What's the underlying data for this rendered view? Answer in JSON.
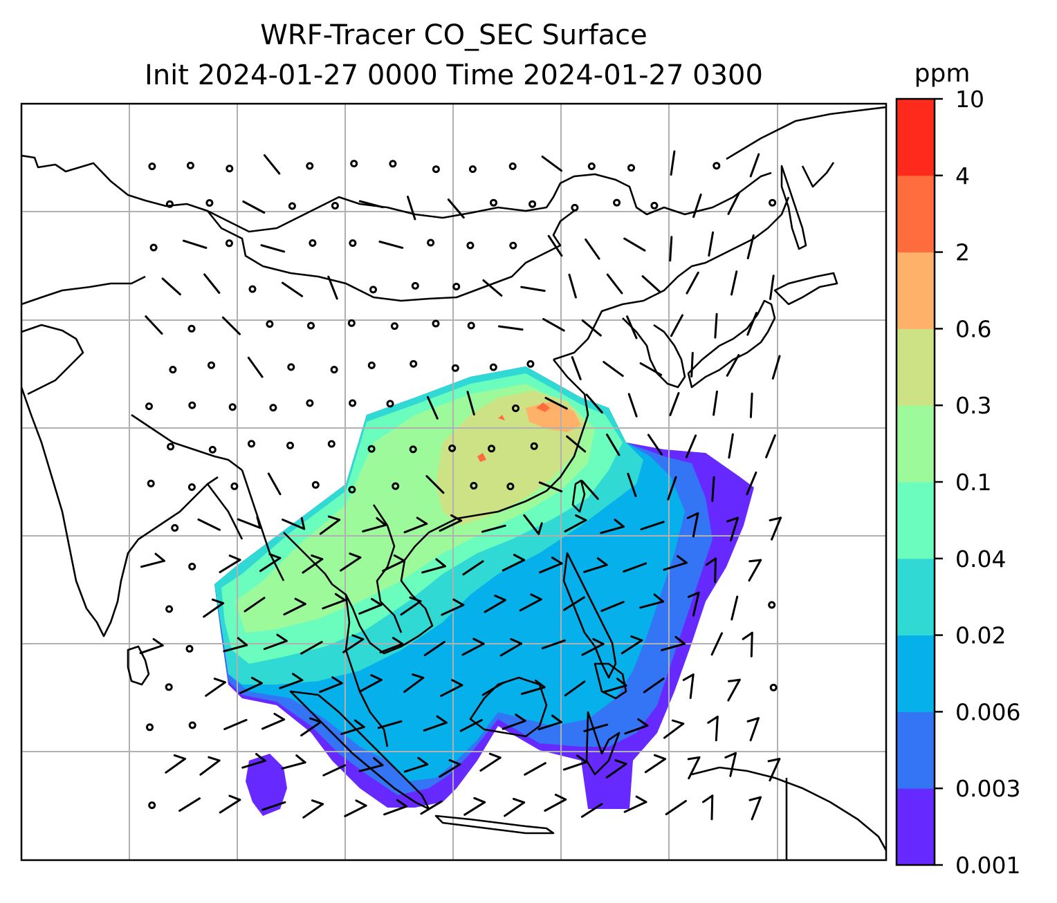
{
  "title": {
    "line1": "WRF-Tracer CO_SEC Surface",
    "line2": "Init 2024-01-27 0000 Time 2024-01-27 0300"
  },
  "colorbar": {
    "unit": "ppm",
    "levels": [
      "0.001",
      "0.003",
      "0.006",
      "0.02",
      "0.04",
      "0.1",
      "0.3",
      "0.6",
      "2",
      "4",
      "10"
    ],
    "colors": [
      "#6629ff",
      "#3375f5",
      "#06b0ea",
      "#30d9d3",
      "#6bfdbd",
      "#9dfa9b",
      "#cde185",
      "#feb168",
      "#ff6c3e",
      "#ff2a1b"
    ]
  },
  "map": {
    "field": "CO_SEC",
    "level": "Surface",
    "gridlines": true,
    "gridline_color": "#b0b0b0",
    "coastline_color": "#000000",
    "barb_color": "#000000"
  }
}
